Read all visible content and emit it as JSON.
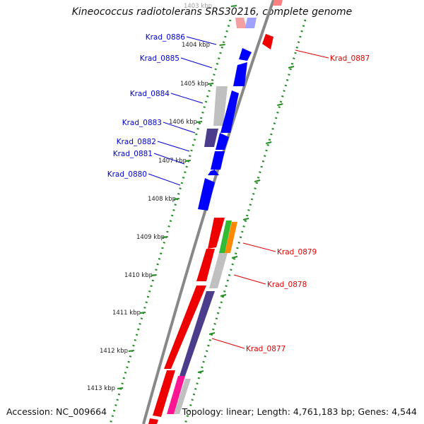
{
  "title": "Kineococcus radiotolerans SRS30216, complete genome",
  "footer": {
    "accession": "Accession: NC_009664",
    "topology": "Topology: linear; Length: 4,761,183 bp; Genes: 4,544"
  },
  "colors": {
    "forward_gene_label": "#0000cc",
    "reverse_gene_label": "#dd0000",
    "backbone": "#888888",
    "tick_dots": "#228B22"
  },
  "kbp_ticks": [
    "1403 kbp",
    "1404 kbp",
    "1405 kbp",
    "1406 kbp",
    "1407 kbp",
    "1408 kbp",
    "1409 kbp",
    "1410 kbp",
    "1411 kbp",
    "1412 kbp",
    "1413 kbp"
  ],
  "gene_labels_left": [
    "Krad_0886",
    "Krad_0885",
    "Krad_0884",
    "Krad_0883",
    "Krad_0882",
    "Krad_0881",
    "Krad_0880"
  ],
  "gene_labels_right": [
    "Krad_0887",
    "Krad_0879",
    "Krad_0878",
    "Krad_0877"
  ]
}
